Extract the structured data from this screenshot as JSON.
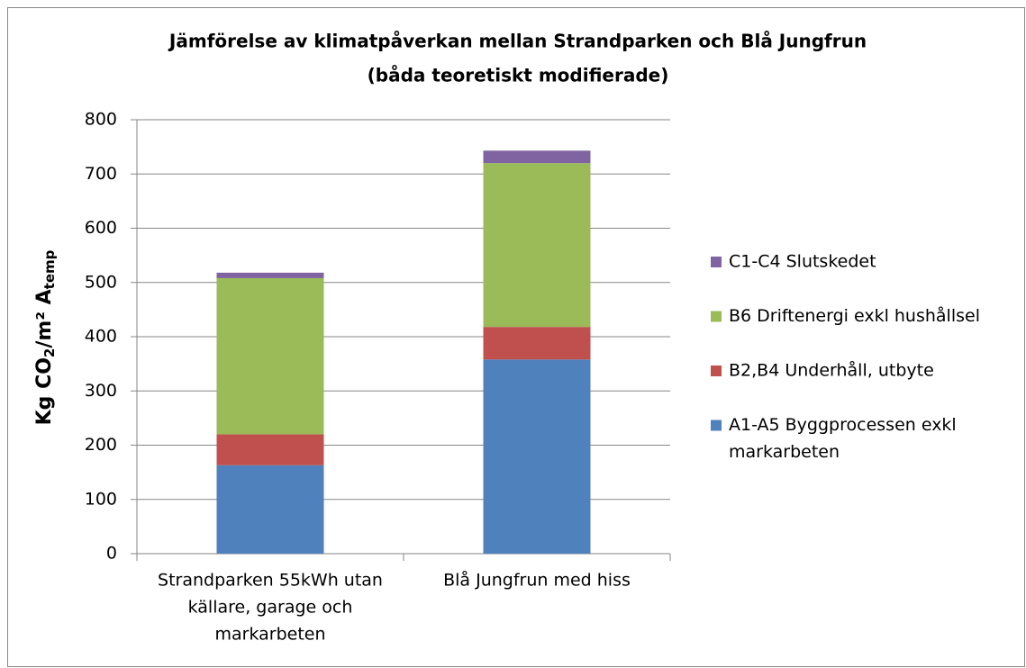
{
  "chart_data": {
    "type": "stacked_bar",
    "title": [
      "Jämförelse av klimatpåverkan mellan Strandparken och Blå Jungfrun",
      "(båda teoretiskt modifierade)"
    ],
    "y_label": [
      {
        "text": "Kg CO"
      },
      {
        "text": "2",
        "sub": true
      },
      {
        "text": "/m² A"
      },
      {
        "text": "temp",
        "sub": true
      }
    ],
    "categories": [
      [
        "Strandparken 55kWh utan",
        "källare, garage och",
        "markarbeten"
      ],
      [
        "Blå Jungfrun med hiss"
      ]
    ],
    "series": [
      {
        "name": [
          "A1-A5 Byggprocessen exkl",
          "markarbeten"
        ],
        "color": "#4f81bd",
        "values": [
          163,
          358
        ]
      },
      {
        "name": [
          "B2,B4 Underhåll, utbyte"
        ],
        "color": "#c0504d",
        "values": [
          57,
          60
        ]
      },
      {
        "name": [
          "B6 Driftenergi exkl hushållsel"
        ],
        "color": "#9bbb59",
        "values": [
          288,
          302
        ]
      },
      {
        "name": [
          "C1-C4 Slutskedet"
        ],
        "color": "#8064a2",
        "values": [
          10,
          23
        ]
      }
    ],
    "ylim": [
      0,
      800
    ],
    "yticks": [
      0,
      100,
      200,
      300,
      400,
      500,
      600,
      700,
      800
    ],
    "grid": true,
    "legend": "right"
  }
}
